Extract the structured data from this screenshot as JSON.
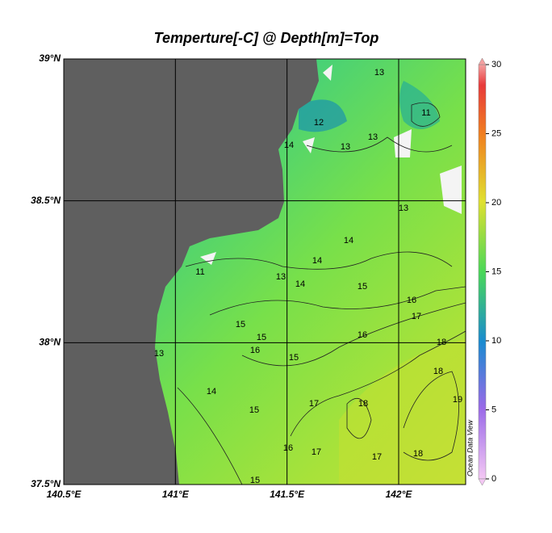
{
  "map": {
    "title": "Temperture[-C] @ Depth[m]=Top",
    "xlim": [
      140.5,
      142.3
    ],
    "ylim": [
      37.5,
      39
    ],
    "xticks": [
      {
        "value": 140.5,
        "label": "140.5°E"
      },
      {
        "value": 141,
        "label": "141°E"
      },
      {
        "value": 141.5,
        "label": "141.5°E"
      },
      {
        "value": 142,
        "label": "142°E"
      }
    ],
    "yticks": [
      {
        "value": 37.5,
        "label": "37.5°N"
      },
      {
        "value": 38,
        "label": "38°N"
      },
      {
        "value": 38.5,
        "label": "38.5°N"
      },
      {
        "value": 39,
        "label": "39°N"
      }
    ],
    "colorbar": {
      "lim": [
        0,
        30
      ],
      "ticks": [
        0,
        5,
        10,
        15,
        20,
        25,
        30
      ]
    },
    "watermark": "Ocean Data View",
    "contour_labels": [
      13,
      12,
      11,
      14,
      13,
      13,
      11,
      13,
      14,
      13,
      14,
      14,
      15,
      16,
      17,
      15,
      15,
      16,
      15,
      14,
      15,
      16,
      18,
      17,
      18,
      18,
      19,
      18,
      17,
      16,
      17,
      15,
      13
    ]
  }
}
